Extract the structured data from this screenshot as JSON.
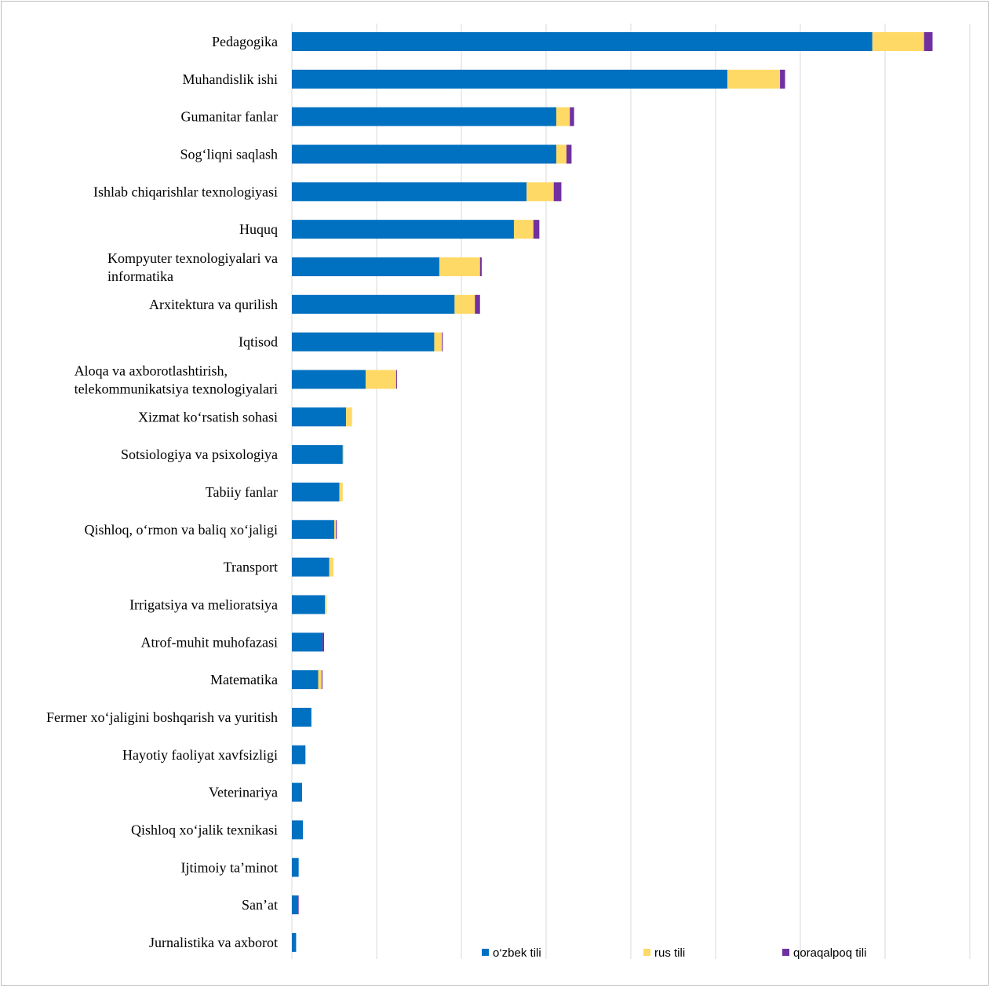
{
  "chart_data": {
    "type": "bar",
    "orientation": "horizontal",
    "stacked": true,
    "grid": true,
    "legend_position": "bottom-right",
    "xlim": [
      0,
      8000
    ],
    "categories": [
      "Pedagogika",
      "Muhandislik ishi",
      "Gumanitar fanlar",
      "Sog‘liqni saqlash",
      "Ishlab chiqarishlar texnologiyasi",
      "Huquq",
      "Kompyuter texnologiyalari va informatika",
      "Arxitektura va qurilish",
      "Iqtisod",
      "Aloqa va axborotlashtirish, telekommunikatsiya texnologiyalari",
      "Xizmat ko‘rsatish sohasi",
      "Sotsiologiya va psixologiya",
      "Tabiiy fanlar",
      "Qishloq, o‘rmon va baliq xo‘jaligi",
      "Transport",
      "Irrigatsiya va melioratsiya",
      "Atrof-muhit muhofazasi",
      "Matematika",
      "Fermer xo‘jaligini boshqarish va yuritish",
      "Hayotiy faoliyat xavfsizligi",
      "Veterinariya",
      "Qishloq xo‘jalik texnikasi",
      "Ijtimoiy ta’minot",
      "San’at",
      "Jurnalistika va axborot"
    ],
    "category_lines": [
      [
        "Pedagogika"
      ],
      [
        "Muhandislik ishi"
      ],
      [
        "Gumanitar fanlar"
      ],
      [
        "Sog‘liqni saqlash"
      ],
      [
        "Ishlab chiqarishlar texnologiyasi"
      ],
      [
        "Huquq"
      ],
      [
        "Kompyuter texnologiyalari va",
        "informatika"
      ],
      [
        "Arxitektura va qurilish"
      ],
      [
        "Iqtisod"
      ],
      [
        "Aloqa va axborotlashtirish,",
        "telekommunikatsiya texnologiyalari"
      ],
      [
        "Xizmat ko‘rsatish sohasi"
      ],
      [
        "Sotsiologiya va psixologiya"
      ],
      [
        "Tabiiy fanlar"
      ],
      [
        "Qishloq, o‘rmon va baliq xo‘jaligi"
      ],
      [
        "Transport"
      ],
      [
        "Irrigatsiya va melioratsiya"
      ],
      [
        "Atrof-muhit muhofazasi"
      ],
      [
        "Matematika"
      ],
      [
        "Fermer xo‘jaligini boshqarish va yuritish"
      ],
      [
        "Hayotiy faoliyat xavfsizligi"
      ],
      [
        "Veterinariya"
      ],
      [
        "Qishloq xo‘jalik texnikasi"
      ],
      [
        "Ijtimoiy ta’minot"
      ],
      [
        "San’at"
      ],
      [
        "Jurnalistika va axborot"
      ]
    ],
    "series": [
      {
        "name": "o‘zbek tili",
        "color": "#0070C0",
        "values": [
          6850,
          5140,
          3120,
          3120,
          2770,
          2620,
          1740,
          1920,
          1680,
          870,
          640,
          600,
          560,
          500,
          440,
          390,
          360,
          310,
          230,
          160,
          120,
          130,
          80,
          70,
          50
        ]
      },
      {
        "name": "rus tili",
        "color": "#FFD966",
        "values": [
          610,
          620,
          160,
          120,
          320,
          230,
          480,
          240,
          90,
          360,
          70,
          10,
          40,
          20,
          50,
          20,
          0,
          40,
          0,
          0,
          0,
          0,
          0,
          0,
          0
        ]
      },
      {
        "name": "qoraqalpoq tili",
        "color": "#7030A0",
        "values": [
          100,
          60,
          50,
          60,
          90,
          70,
          20,
          60,
          10,
          10,
          0,
          0,
          0,
          10,
          0,
          0,
          20,
          10,
          0,
          0,
          0,
          0,
          0,
          10,
          0
        ]
      }
    ]
  }
}
